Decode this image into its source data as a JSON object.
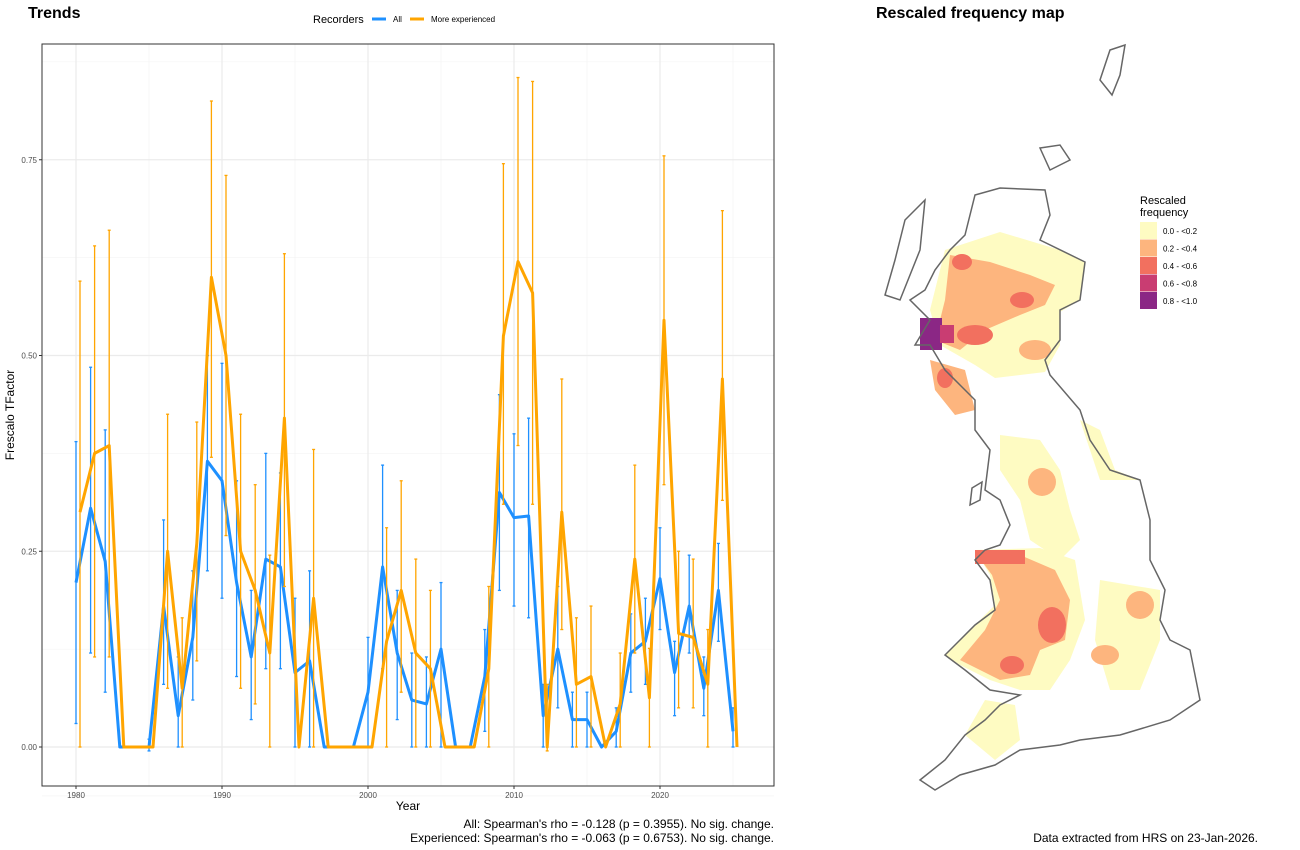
{
  "chart_data": [
    {
      "type": "line",
      "title": "Trends",
      "xlabel": "Year",
      "ylabel": "Frescalo TFactor",
      "xlim": [
        1978.5,
        2026.5
      ],
      "ylim": [
        -0.1,
        0.89
      ],
      "x_ticks": [
        "1980",
        "1990",
        "2000",
        "2010",
        "2020"
      ],
      "y_ticks": [
        "0.00",
        "0.25",
        "0.50",
        "0.75"
      ],
      "grid": true,
      "legend": {
        "title": "Recorders",
        "placement": "top",
        "entries": [
          "All",
          "More experienced"
        ]
      },
      "x": [
        1980,
        1981,
        1982,
        1983,
        1984,
        1985,
        1986,
        1987,
        1988,
        1989,
        1990,
        1991,
        1992,
        1993,
        1994,
        1995,
        1996,
        1997,
        1998,
        1999,
        2000,
        2001,
        2002,
        2003,
        2004,
        2005,
        2006,
        2007,
        2008,
        2009,
        2010,
        2011,
        2012,
        2013,
        2014,
        2015,
        2016,
        2017,
        2018,
        2019,
        2020,
        2021,
        2022,
        2023,
        2024,
        2025
      ],
      "series": [
        {
          "name": "All",
          "color": "#1E90FF",
          "values": [
            0.21,
            0.305,
            0.237,
            0,
            0,
            0,
            0.18,
            0.04,
            0.14,
            0.365,
            0.34,
            0.21,
            0.115,
            0.24,
            0.23,
            0.095,
            0.11,
            0,
            0,
            0,
            0.07,
            0.23,
            0.12,
            0.06,
            0.055,
            0.125,
            0,
            0,
            0.09,
            0.325,
            0.293,
            0.295,
            0.04,
            0.125,
            0.035,
            0.035,
            0,
            0.02,
            0.12,
            0.135,
            0.215,
            0.095,
            0.18,
            0.075,
            0.2,
            0.02
          ],
          "lower": [
            0.03,
            0.12,
            0.07,
            0,
            0,
            -0.005,
            0.08,
            0,
            0.06,
            0.225,
            0.19,
            0.09,
            0.035,
            0.1,
            0.1,
            0,
            0,
            0,
            0,
            0,
            0,
            0.1,
            0.035,
            0,
            0,
            0,
            0,
            0,
            0.02,
            0.2,
            0.18,
            0.165,
            0,
            0.05,
            0,
            0,
            0,
            0,
            0.07,
            0.08,
            0.15,
            0.04,
            0.12,
            0.04,
            0.135,
            0
          ],
          "upper": [
            0.39,
            0.485,
            0.405,
            0,
            0,
            0.01,
            0.29,
            0.115,
            0.225,
            0.5,
            0.49,
            0.34,
            0.2,
            0.375,
            0.35,
            0.19,
            0.225,
            0,
            0,
            0,
            0.14,
            0.36,
            0.2,
            0.12,
            0.115,
            0.21,
            0,
            0,
            0.15,
            0.45,
            0.4,
            0.42,
            0.08,
            0.205,
            0.07,
            0.07,
            0,
            0.05,
            0.17,
            0.19,
            0.28,
            0.135,
            0.245,
            0.115,
            0.26,
            0.05
          ]
        },
        {
          "name": "More experienced",
          "color": "#FFA500",
          "values": [
            0.3,
            0.375,
            0.385,
            0,
            0,
            0,
            0.25,
            0.075,
            0.26,
            0.6,
            0.5,
            0.25,
            0.2,
            0.12,
            0.42,
            0,
            0.19,
            0,
            0,
            0,
            0,
            0.135,
            0.2,
            0.12,
            0.1,
            0,
            0,
            0,
            0.1,
            0.525,
            0.62,
            0.58,
            0,
            0.3,
            0.08,
            0.09,
            0,
            0.055,
            0.24,
            0.063,
            0.545,
            0.145,
            0.14,
            0.08,
            0.47,
            0
          ],
          "lower": [
            0,
            0.115,
            0.115,
            0,
            0,
            0,
            0.075,
            0,
            0.11,
            0.37,
            0.27,
            0.075,
            0.055,
            0,
            0.205,
            0,
            0,
            0,
            0,
            0,
            0,
            0,
            0.07,
            0,
            0,
            0,
            0,
            0,
            0,
            0.31,
            0.385,
            0.31,
            -0.005,
            0.15,
            0,
            0,
            0,
            0,
            0.12,
            0,
            0.335,
            0.05,
            0.05,
            0,
            0.315,
            0
          ],
          "upper": [
            0.595,
            0.64,
            0.66,
            0,
            0,
            0,
            0.425,
            0.165,
            0.415,
            0.825,
            0.73,
            0.425,
            0.335,
            0.245,
            0.63,
            0,
            0.38,
            0,
            0,
            0,
            0,
            0.28,
            0.34,
            0.24,
            0.2,
            0,
            0,
            0,
            0.205,
            0.745,
            0.855,
            0.85,
            0.08,
            0.47,
            0.165,
            0.18,
            0,
            0.12,
            0.36,
            0.126,
            0.755,
            0.25,
            0.24,
            0.15,
            0.685,
            0
          ]
        }
      ],
      "annotations": [
        "All: Spearman's rho = -0.128 (p = 0.3955). No sig. change.",
        "Experienced: Spearman's rho = -0.063 (p = 0.6753). No sig. change."
      ]
    }
  ],
  "map": {
    "title": "Rescaled frequency map",
    "legend_title_1": "Rescaled",
    "legend_title_2": "frequency",
    "classes": [
      {
        "label": "0.0 - <0.2",
        "color": "#FEFBC2"
      },
      {
        "label": "0.2 - <0.4",
        "color": "#FDB57E"
      },
      {
        "label": "0.4 - <0.6",
        "color": "#F2705F"
      },
      {
        "label": "0.6 - <0.8",
        "color": "#C93D72"
      },
      {
        "label": "0.8 - <1.0",
        "color": "#8B2785"
      }
    ],
    "caption": "Data extracted from HRS on 23-Jan-2026."
  }
}
